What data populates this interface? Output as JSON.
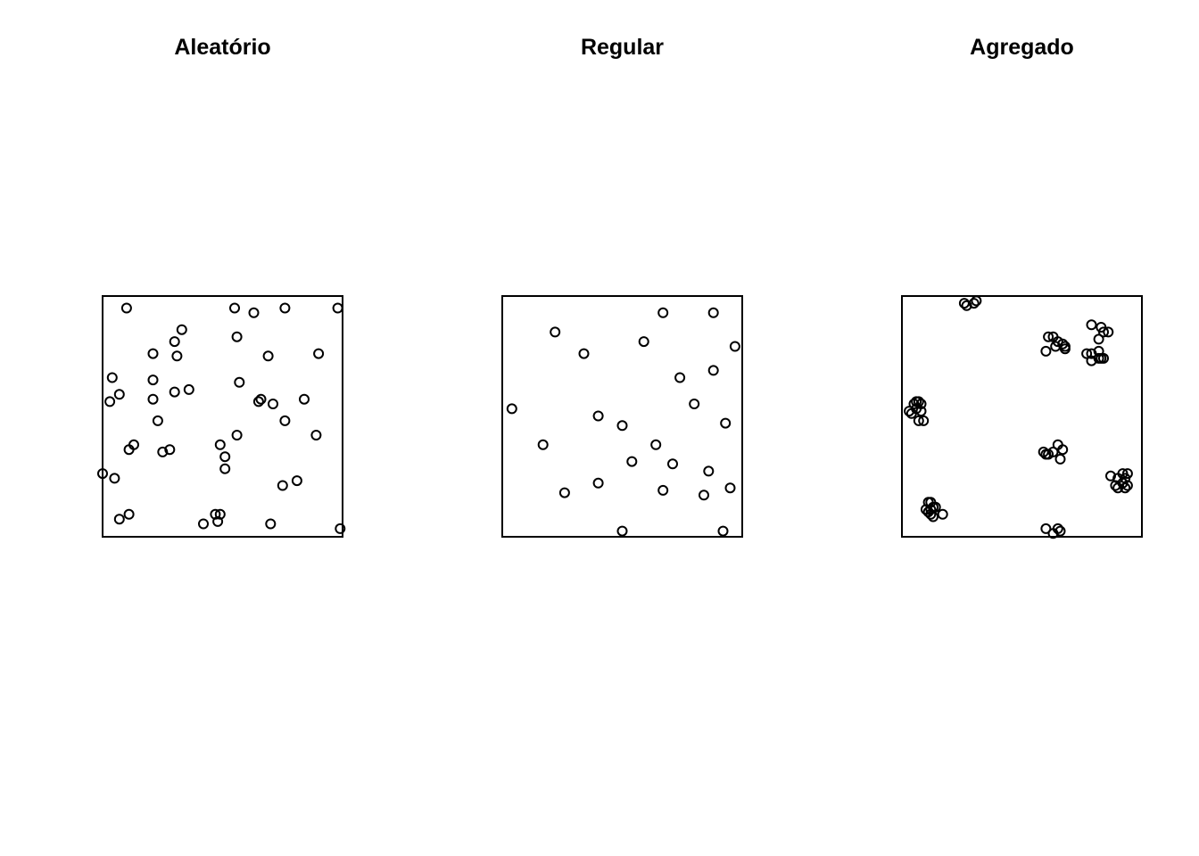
{
  "chart_data": [
    {
      "type": "scatter",
      "title": "Aleatório",
      "xlim": [
        0,
        1
      ],
      "ylim": [
        0,
        1
      ],
      "axes": false,
      "grid": false,
      "series": [
        {
          "points": [
            [
              0.1,
              0.95
            ],
            [
              0.55,
              0.95
            ],
            [
              0.63,
              0.93
            ],
            [
              0.76,
              0.95
            ],
            [
              0.98,
              0.95
            ],
            [
              0.33,
              0.86
            ],
            [
              0.56,
              0.83
            ],
            [
              0.3,
              0.81
            ],
            [
              0.21,
              0.76
            ],
            [
              0.31,
              0.75
            ],
            [
              0.69,
              0.75
            ],
            [
              0.9,
              0.76
            ],
            [
              0.04,
              0.66
            ],
            [
              0.21,
              0.65
            ],
            [
              0.57,
              0.64
            ],
            [
              0.07,
              0.59
            ],
            [
              0.3,
              0.6
            ],
            [
              0.36,
              0.61
            ],
            [
              0.03,
              0.56
            ],
            [
              0.21,
              0.57
            ],
            [
              0.66,
              0.57
            ],
            [
              0.65,
              0.56
            ],
            [
              0.71,
              0.55
            ],
            [
              0.84,
              0.57
            ],
            [
              0.23,
              0.48
            ],
            [
              0.76,
              0.48
            ],
            [
              0.56,
              0.42
            ],
            [
              0.89,
              0.42
            ],
            [
              0.13,
              0.38
            ],
            [
              0.11,
              0.36
            ],
            [
              0.25,
              0.35
            ],
            [
              0.28,
              0.36
            ],
            [
              0.49,
              0.38
            ],
            [
              0.51,
              0.33
            ],
            [
              0.51,
              0.28
            ],
            [
              0.0,
              0.26
            ],
            [
              0.05,
              0.24
            ],
            [
              0.75,
              0.21
            ],
            [
              0.81,
              0.23
            ],
            [
              0.11,
              0.09
            ],
            [
              0.07,
              0.07
            ],
            [
              0.47,
              0.09
            ],
            [
              0.49,
              0.09
            ],
            [
              0.48,
              0.06
            ],
            [
              0.42,
              0.05
            ],
            [
              0.7,
              0.05
            ],
            [
              0.99,
              0.03
            ]
          ]
        }
      ]
    },
    {
      "type": "scatter",
      "title": "Regular",
      "xlim": [
        0,
        1
      ],
      "ylim": [
        0,
        1
      ],
      "axes": false,
      "grid": false,
      "series": [
        {
          "points": [
            [
              0.67,
              0.93
            ],
            [
              0.88,
              0.93
            ],
            [
              0.22,
              0.85
            ],
            [
              0.59,
              0.81
            ],
            [
              0.97,
              0.79
            ],
            [
              0.34,
              0.76
            ],
            [
              0.88,
              0.69
            ],
            [
              0.74,
              0.66
            ],
            [
              0.04,
              0.53
            ],
            [
              0.8,
              0.55
            ],
            [
              0.4,
              0.5
            ],
            [
              0.5,
              0.46
            ],
            [
              0.93,
              0.47
            ],
            [
              0.17,
              0.38
            ],
            [
              0.64,
              0.38
            ],
            [
              0.54,
              0.31
            ],
            [
              0.71,
              0.3
            ],
            [
              0.86,
              0.27
            ],
            [
              0.4,
              0.22
            ],
            [
              0.26,
              0.18
            ],
            [
              0.67,
              0.19
            ],
            [
              0.84,
              0.17
            ],
            [
              0.95,
              0.2
            ],
            [
              0.5,
              0.02
            ],
            [
              0.92,
              0.02
            ]
          ]
        }
      ]
    },
    {
      "type": "scatter",
      "title": "Agregado",
      "xlim": [
        0,
        1
      ],
      "ylim": [
        0,
        1
      ],
      "axes": false,
      "grid": false,
      "series": [
        {
          "points": [
            [
              0.26,
              0.97
            ],
            [
              0.27,
              0.96
            ],
            [
              0.3,
              0.97
            ],
            [
              0.31,
              0.98
            ],
            [
              0.79,
              0.88
            ],
            [
              0.83,
              0.87
            ],
            [
              0.84,
              0.85
            ],
            [
              0.86,
              0.85
            ],
            [
              0.82,
              0.82
            ],
            [
              0.61,
              0.83
            ],
            [
              0.63,
              0.83
            ],
            [
              0.65,
              0.81
            ],
            [
              0.67,
              0.8
            ],
            [
              0.68,
              0.78
            ],
            [
              0.64,
              0.79
            ],
            [
              0.6,
              0.77
            ],
            [
              0.68,
              0.79
            ],
            [
              0.77,
              0.76
            ],
            [
              0.79,
              0.76
            ],
            [
              0.82,
              0.77
            ],
            [
              0.79,
              0.73
            ],
            [
              0.83,
              0.74
            ],
            [
              0.84,
              0.74
            ],
            [
              0.82,
              0.74
            ],
            [
              0.06,
              0.56
            ],
            [
              0.07,
              0.56
            ],
            [
              0.05,
              0.55
            ],
            [
              0.08,
              0.55
            ],
            [
              0.06,
              0.53
            ],
            [
              0.03,
              0.52
            ],
            [
              0.04,
              0.51
            ],
            [
              0.08,
              0.52
            ],
            [
              0.07,
              0.48
            ],
            [
              0.09,
              0.48
            ],
            [
              0.65,
              0.38
            ],
            [
              0.67,
              0.36
            ],
            [
              0.59,
              0.35
            ],
            [
              0.6,
              0.34
            ],
            [
              0.61,
              0.34
            ],
            [
              0.63,
              0.35
            ],
            [
              0.66,
              0.32
            ],
            [
              0.87,
              0.25
            ],
            [
              0.9,
              0.24
            ],
            [
              0.92,
              0.26
            ],
            [
              0.94,
              0.26
            ],
            [
              0.93,
              0.24
            ],
            [
              0.89,
              0.21
            ],
            [
              0.9,
              0.2
            ],
            [
              0.93,
              0.2
            ],
            [
              0.94,
              0.21
            ],
            [
              0.92,
              0.22
            ],
            [
              0.11,
              0.14
            ],
            [
              0.12,
              0.14
            ],
            [
              0.13,
              0.12
            ],
            [
              0.1,
              0.11
            ],
            [
              0.12,
              0.11
            ],
            [
              0.14,
              0.12
            ],
            [
              0.12,
              0.09
            ],
            [
              0.13,
              0.08
            ],
            [
              0.11,
              0.1
            ],
            [
              0.17,
              0.09
            ],
            [
              0.6,
              0.03
            ],
            [
              0.63,
              0.01
            ],
            [
              0.65,
              0.03
            ],
            [
              0.66,
              0.02
            ]
          ]
        }
      ]
    }
  ]
}
